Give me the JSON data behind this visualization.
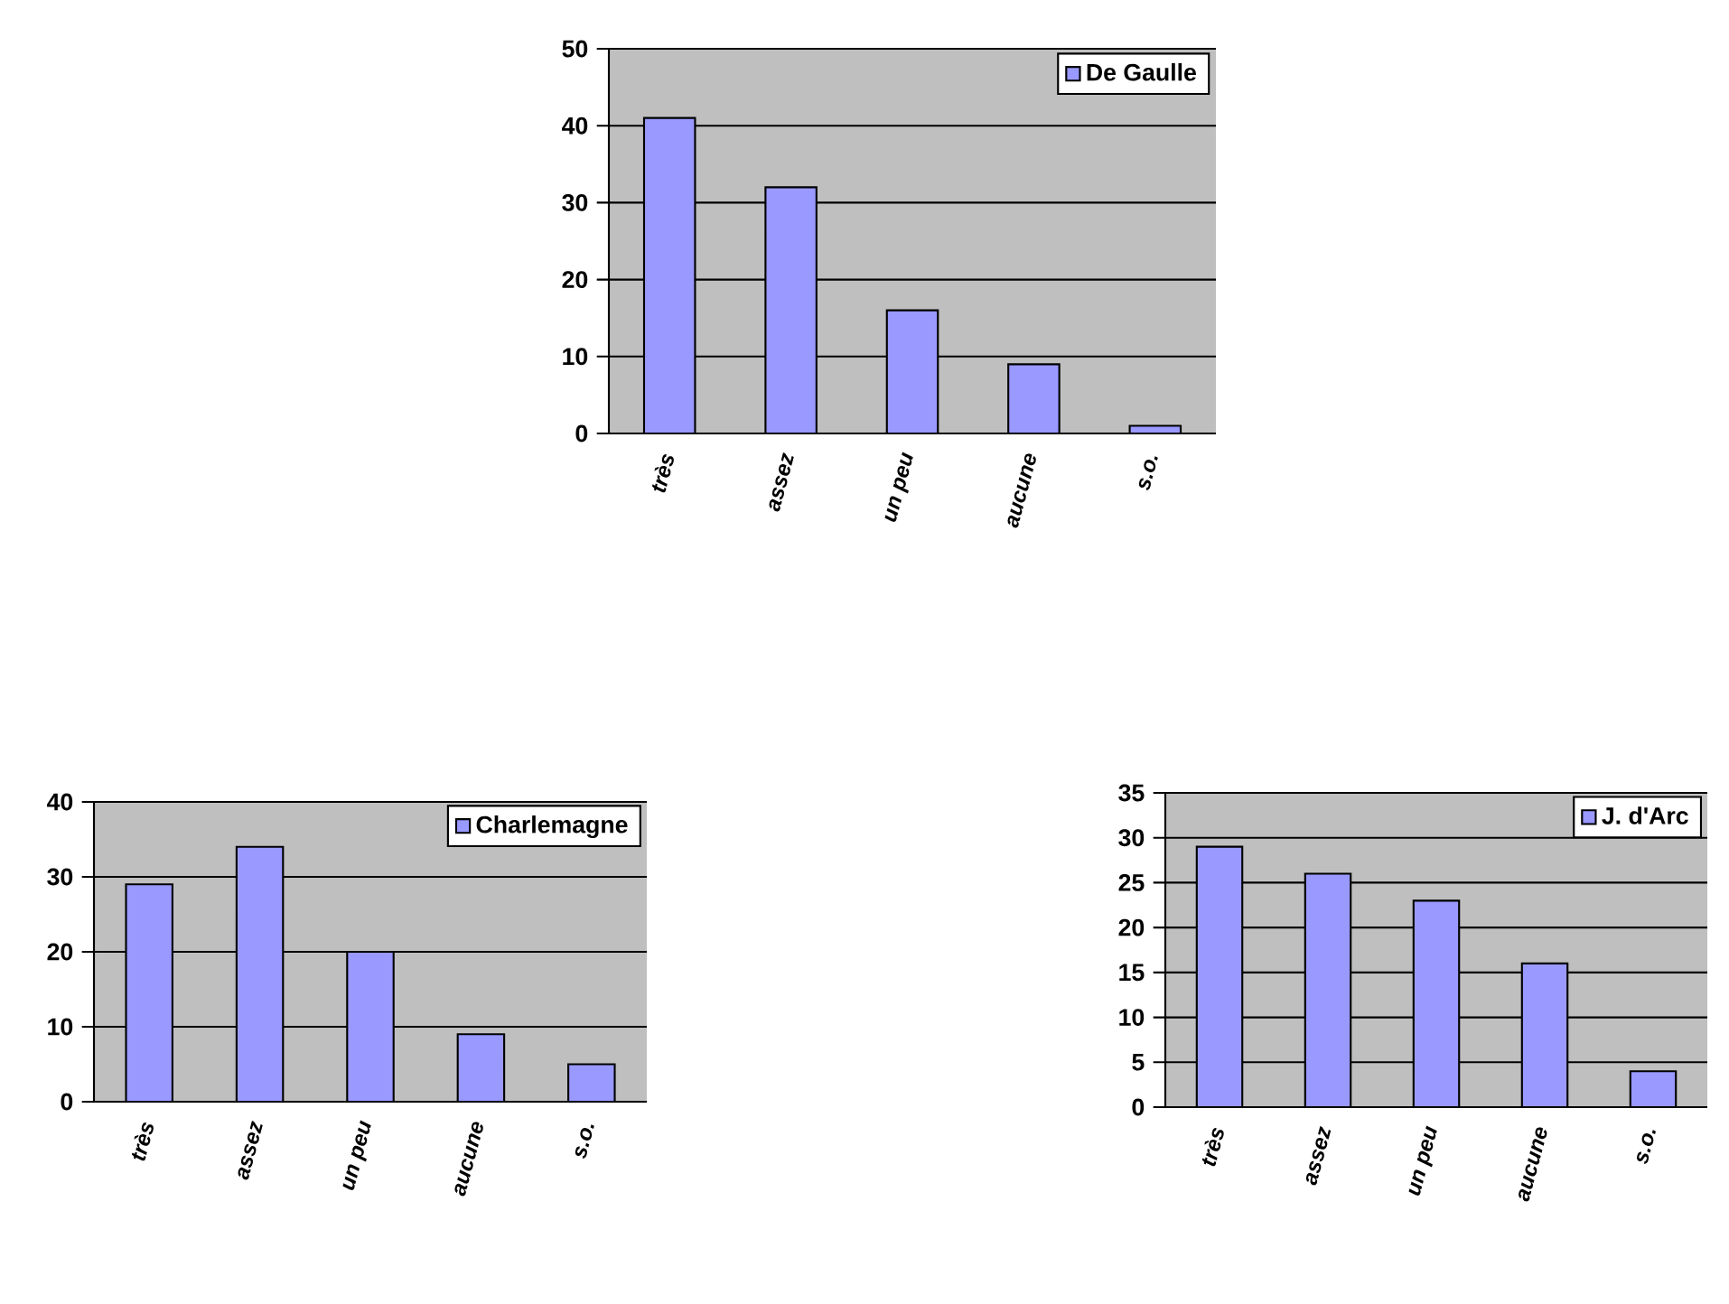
{
  "chart_data": [
    {
      "type": "bar",
      "categories": [
        "très",
        "assez",
        "un peu",
        "aucune",
        "s.o."
      ],
      "series": [
        {
          "name": "De Gaulle",
          "color": "#9999ff",
          "values": [
            41,
            32,
            16,
            9,
            1
          ]
        }
      ],
      "ylim": [
        0,
        50
      ],
      "yticks": [
        0,
        10,
        20,
        30,
        40,
        50
      ],
      "grid": "y",
      "legend": "top right"
    },
    {
      "type": "bar",
      "categories": [
        "très",
        "assez",
        "un peu",
        "aucune",
        "s.o."
      ],
      "series": [
        {
          "name": "Charlemagne",
          "color": "#9999ff",
          "values": [
            29,
            34,
            20,
            9,
            5
          ]
        }
      ],
      "ylim": [
        0,
        40
      ],
      "yticks": [
        0,
        10,
        20,
        30,
        40
      ],
      "grid": "y",
      "legend": "top right"
    },
    {
      "type": "bar",
      "categories": [
        "très",
        "assez",
        "un peu",
        "aucune",
        "s.o."
      ],
      "series": [
        {
          "name": "J. d'Arc",
          "color": "#9999ff",
          "values": [
            29,
            26,
            23,
            16,
            4
          ]
        }
      ],
      "ylim": [
        0,
        35
      ],
      "yticks": [
        0,
        5,
        10,
        15,
        20,
        25,
        30,
        35
      ],
      "grid": "y",
      "legend": "top right"
    }
  ]
}
